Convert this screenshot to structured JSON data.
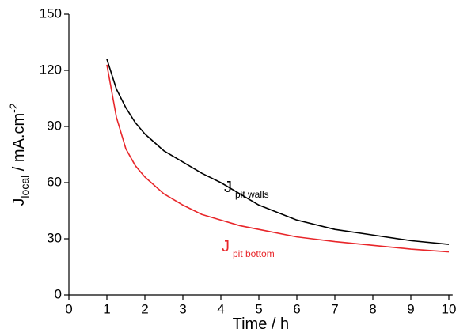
{
  "chart_data": {
    "type": "line",
    "xlabel": "Time / h",
    "ylabel": {
      "main": "J",
      "sub": "local",
      "rest": " / mA.cm",
      "sup": "-2"
    },
    "xlim": [
      0,
      10.1
    ],
    "ylim": [
      0,
      150
    ],
    "xticks": [
      0,
      1,
      2,
      3,
      4,
      5,
      6,
      7,
      8,
      9,
      10
    ],
    "yticks": [
      0,
      30,
      60,
      90,
      120,
      150
    ],
    "grid": false,
    "x": [
      1,
      1.25,
      1.5,
      1.75,
      2,
      2.5,
      3,
      3.5,
      4,
      4.5,
      5,
      6,
      7,
      8,
      9,
      10
    ],
    "series": [
      {
        "label": "J",
        "name": "pit walls",
        "color": "#000000",
        "values": [
          126,
          110,
          100,
          92,
          86,
          77,
          71,
          65,
          60,
          54,
          48,
          40,
          35,
          32,
          29,
          27
        ]
      },
      {
        "label": "J",
        "name": "pit bottom",
        "color": "#e8262a",
        "values": [
          123,
          95,
          78,
          69,
          63,
          54,
          48,
          43,
          40,
          37,
          35,
          31,
          28.5,
          26.5,
          24.5,
          23
        ]
      }
    ]
  }
}
